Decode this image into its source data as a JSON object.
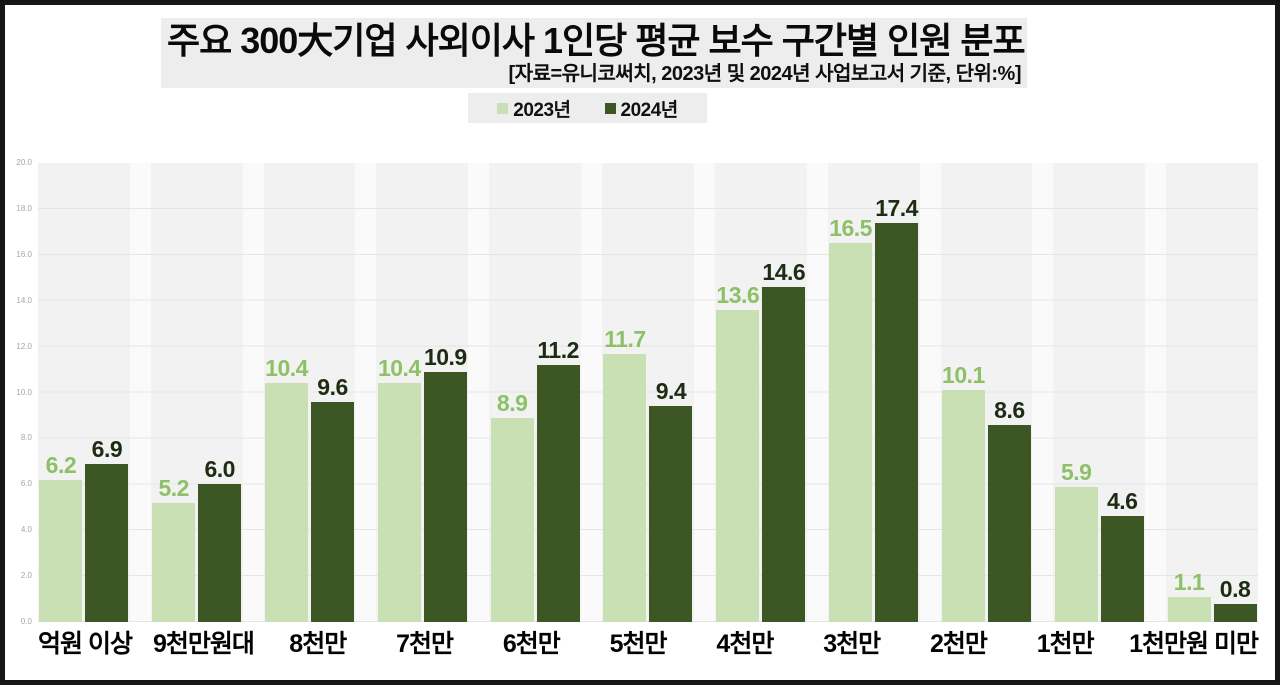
{
  "header": {
    "title": "주요 300大기업 사외이사 1인당 평균 보수 구간별 인원 분포",
    "subtitle": "[자료=유니코써치, 2023년 및 2024년 사업보고서 기준, 단위:%]"
  },
  "legend": {
    "items": [
      {
        "label": "2023년",
        "color": "#c9e0b5"
      },
      {
        "label": "2024년",
        "color": "#3c5723"
      }
    ]
  },
  "chart_data": {
    "type": "bar",
    "title": "주요 300大기업 사외이사 1인당 평균 보수 구간별 인원 분포",
    "source_note": "자료=유니코써치, 2023년 및 2024년 사업보고서 기준",
    "unit": "%",
    "categories": [
      "억원 이상",
      "9천만원대",
      "8천만",
      "7천만",
      "6천만",
      "5천만",
      "4천만",
      "3천만",
      "2천만",
      "1천만",
      "1천만원 미만"
    ],
    "series": [
      {
        "name": "2023년",
        "color": "#c9e0b5",
        "label_color": "#8dc167",
        "values": [
          6.2,
          5.2,
          10.4,
          10.4,
          8.9,
          11.7,
          13.6,
          16.5,
          10.1,
          5.9,
          1.1
        ],
        "labels": [
          "6.2",
          "5.2",
          "10.4",
          "10.4",
          "8.9",
          "11.7",
          "13.6",
          "16.5",
          "10.1",
          "5.9",
          "1.1"
        ]
      },
      {
        "name": "2024년",
        "color": "#3c5723",
        "label_color": "#1d2c12",
        "values": [
          6.9,
          6.0,
          9.6,
          10.9,
          11.2,
          9.4,
          14.6,
          17.4,
          8.6,
          4.6,
          0.8
        ],
        "labels": [
          "6.9",
          "6.0",
          "9.6",
          "10.9",
          "11.2",
          "9.4",
          "14.6",
          "17.4",
          "8.6",
          "4.6",
          "0.8"
        ]
      }
    ],
    "ylim": [
      0,
      20
    ],
    "y_ticks": [
      "0.0",
      "2.0",
      "4.0",
      "6.0",
      "8.0",
      "10.0",
      "12.0",
      "14.0",
      "16.0",
      "18.0",
      "20.0"
    ],
    "grid": true,
    "legend_position": "top",
    "plot_background": "#f2f2f2",
    "gridline_color": "#e5e5e5"
  }
}
